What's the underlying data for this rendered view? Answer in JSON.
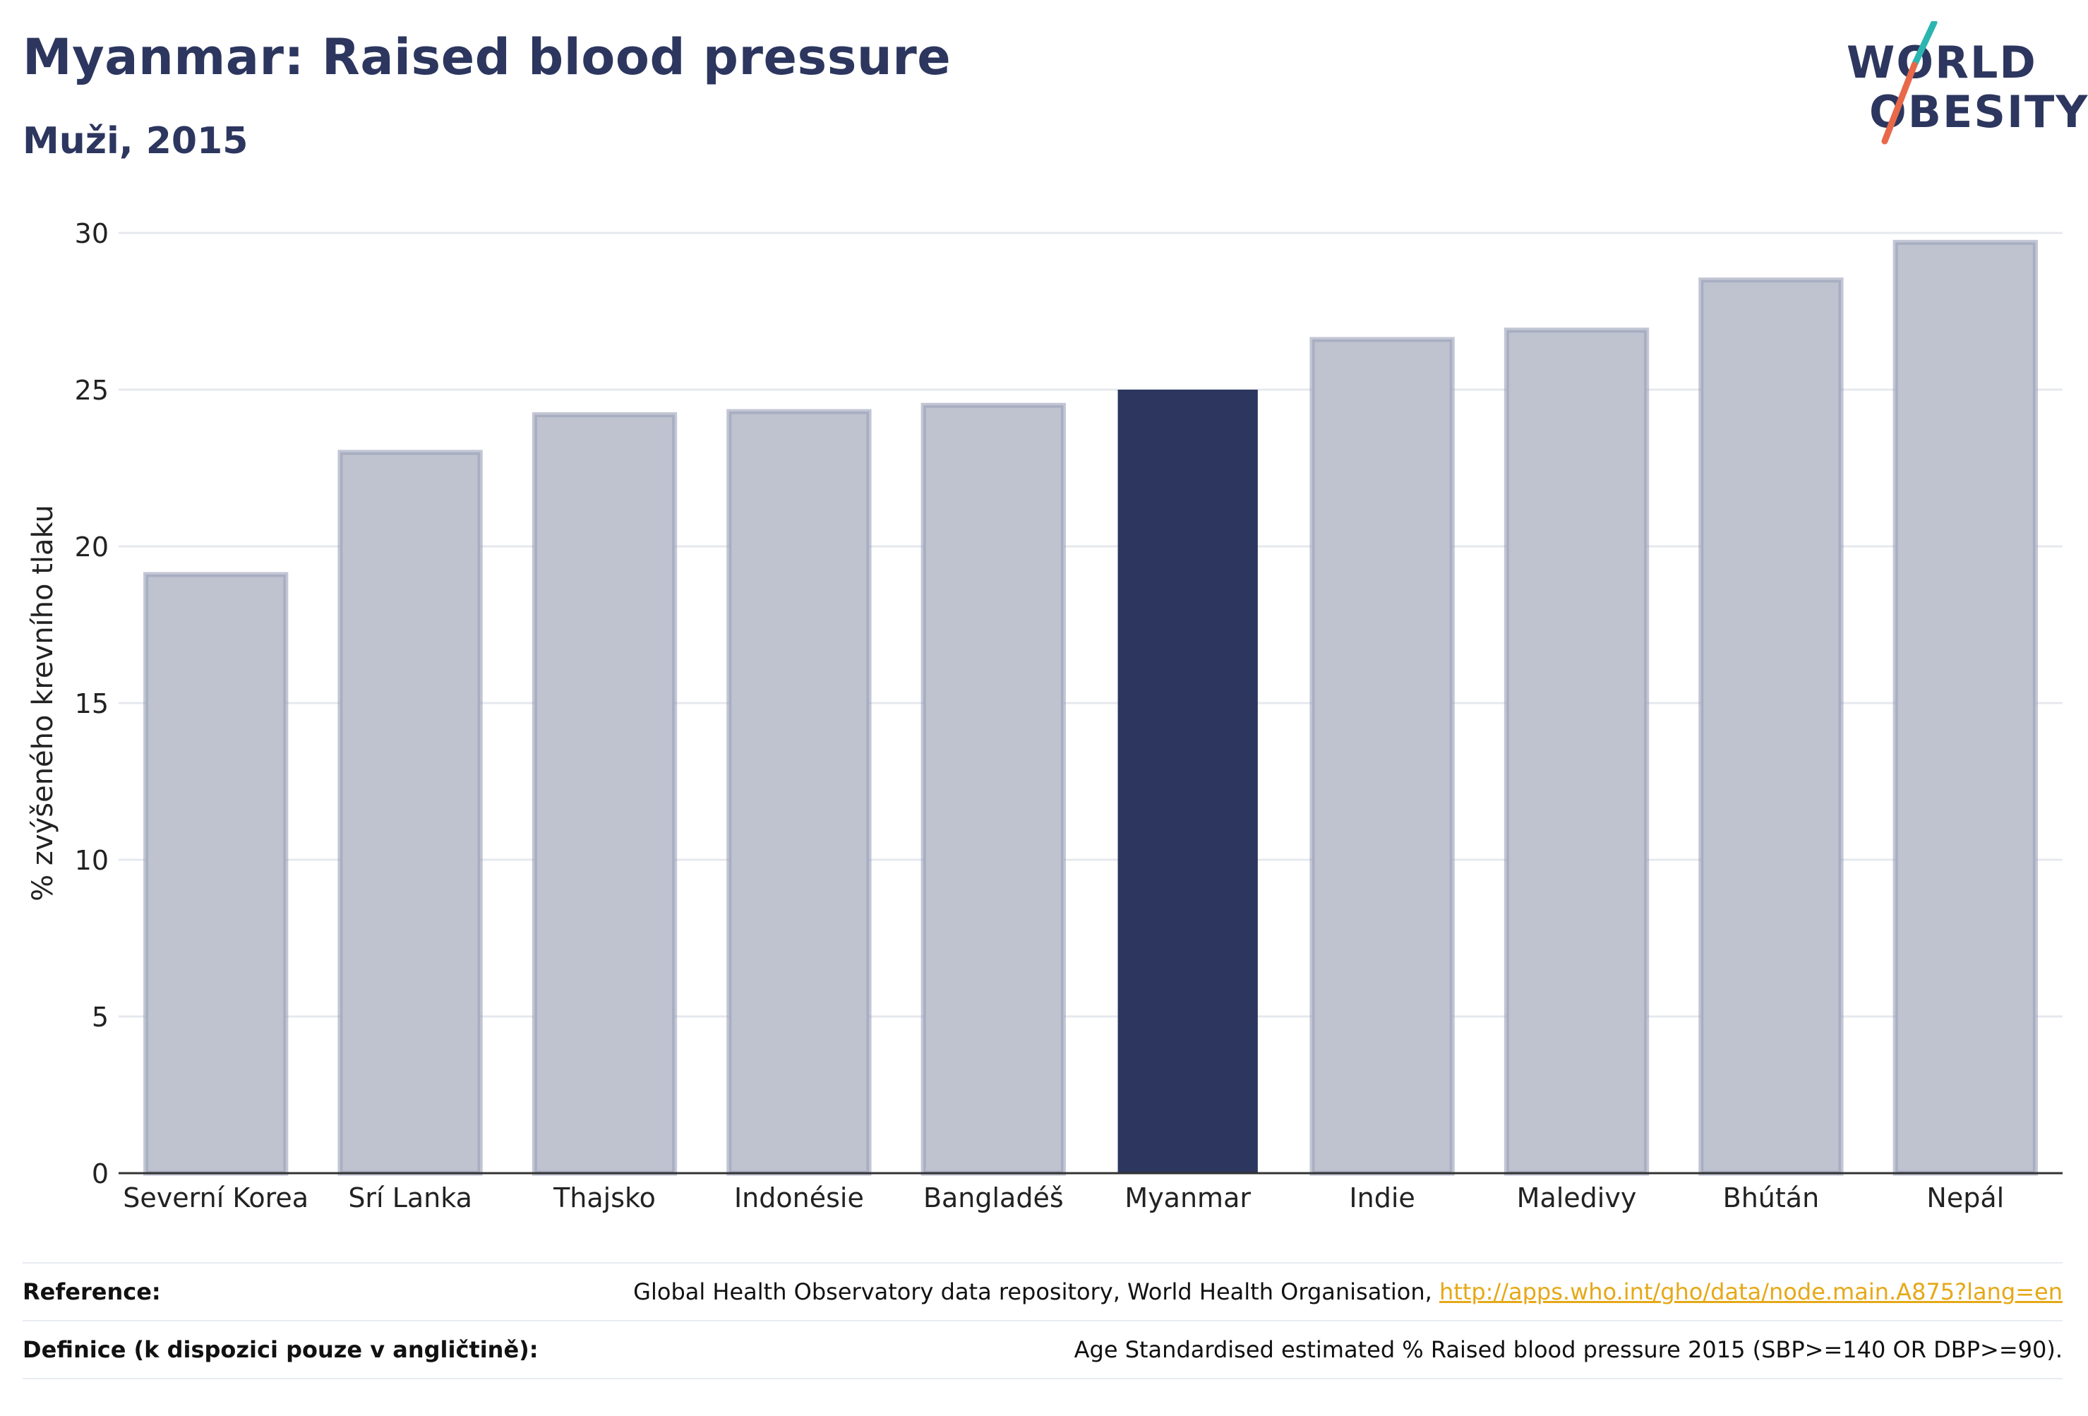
{
  "header": {
    "title": "Myanmar: Raised blood pressure",
    "subtitle": "Muži, 2015"
  },
  "logo": {
    "line1": "WORLD",
    "line2": "OBESITY",
    "colors": {
      "text": "#2c365e",
      "slash_top": "#2bb5b0",
      "slash_bottom": "#e8684a"
    }
  },
  "chart_data": {
    "type": "bar",
    "categories": [
      "Severní Korea",
      "Srí Lanka",
      "Thajsko",
      "Indonésie",
      "Bangladéš",
      "Myanmar",
      "Indie",
      "Maledivy",
      "Bhútán",
      "Nepál"
    ],
    "values": [
      19.1,
      23.0,
      24.2,
      24.3,
      24.5,
      25.0,
      26.6,
      26.9,
      28.5,
      29.7
    ],
    "highlight": "Myanmar",
    "ylabel": "% zvýšeného krevního tlaku",
    "xlabel": "",
    "ylim": [
      0,
      30
    ],
    "yticks": [
      0,
      5,
      10,
      15,
      20,
      25,
      30
    ],
    "grid": true,
    "colors": {
      "bar": "#bfc2cf",
      "bar_stroke": "#9aa0b8",
      "highlight": "#2c365e",
      "grid": "#e6e8ef",
      "axis": "#333333"
    }
  },
  "footer": {
    "reference_label": "Reference:",
    "reference_text": "Global Health Observatory data repository, World Health Organisation, ",
    "reference_link": "http://apps.who.int/gho/data/node.main.A875?lang=en",
    "definition_label": "Definice (k dispozici pouze v angličtině):",
    "definition_text": "Age Standardised estimated % Raised blood pressure 2015 (SBP>=140 OR DBP>=90)."
  }
}
